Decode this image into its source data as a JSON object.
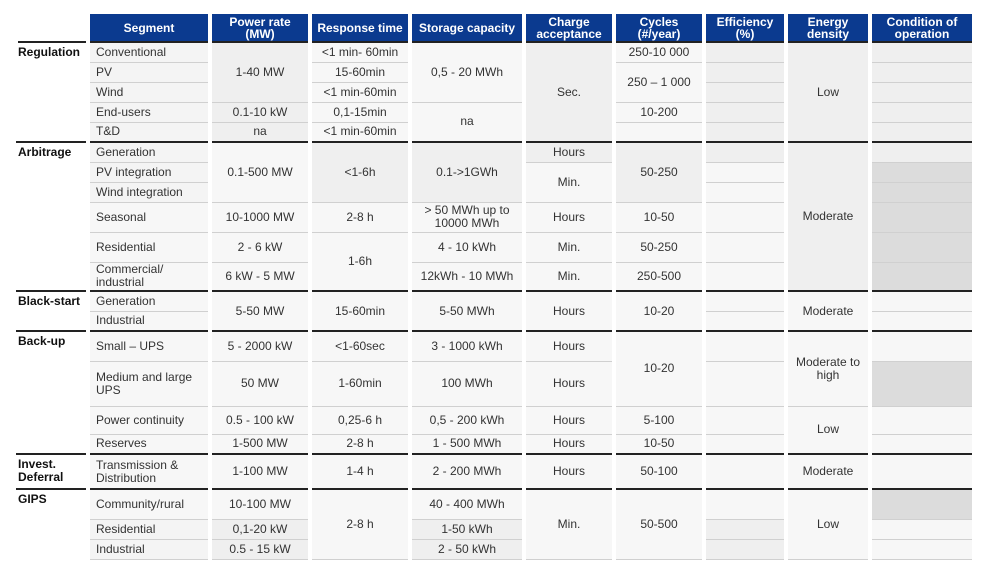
{
  "header": {
    "segment": "Segment",
    "power": "Power rate (MW)",
    "response": "Response time",
    "storage": "Storage capacity",
    "charge": "Charge acceptance",
    "cycles": "Cycles (#/year)",
    "efficiency": "Efficiency (%)",
    "energy": "Energy density",
    "condition": "Condition of operation"
  },
  "colors": {
    "header_bg": "#0b3a8f",
    "header_text": "#ffffff"
  },
  "groups": [
    {
      "name": "Regulation",
      "segments": [
        "Conventional",
        "PV",
        "Wind",
        "End-users",
        "T&D"
      ],
      "power": [
        "1-40 MW",
        "0.1-10 kW",
        "na"
      ],
      "response": [
        "<1 min- 60min",
        "15-60min",
        "<1 min-60min",
        "0,1-15min",
        "<1 min-60min"
      ],
      "storage": [
        "0,5 - 20 MWh",
        "na"
      ],
      "charge": [
        "Sec."
      ],
      "cycles": [
        "250-10 000",
        "250 – 1 000",
        "10-200"
      ],
      "energy": [
        "Low"
      ]
    },
    {
      "name": "Arbitrage",
      "segments": [
        "Generation",
        "PV integration",
        "Wind integration",
        "Seasonal",
        "Residential",
        "Commercial/ industrial"
      ],
      "power": [
        "0.1-500 MW",
        "10-1000 MW",
        "2 - 6 kW",
        "6 kW - 5 MW"
      ],
      "response": [
        "<1-6h",
        "2-8 h",
        "1-6h"
      ],
      "storage": [
        "0.1->1GWh",
        "> 50 MWh up to 10000 MWh",
        "4 - 10 kWh",
        "12kWh - 10 MWh"
      ],
      "charge": [
        "Hours",
        "Min.",
        "Hours",
        "Min.",
        "Min."
      ],
      "cycles": [
        "50-250",
        "10-50",
        "50-250",
        "250-500"
      ],
      "energy": [
        "Moderate"
      ]
    },
    {
      "name": "Black-start",
      "segments": [
        "Generation",
        "Industrial"
      ],
      "power": [
        "5-50 MW"
      ],
      "response": [
        "15-60min"
      ],
      "storage": [
        "5-50 MWh"
      ],
      "charge": [
        "Hours"
      ],
      "cycles": [
        "10-20"
      ],
      "energy": [
        "Moderate"
      ]
    },
    {
      "name": "Back-up",
      "segments": [
        "Small – UPS",
        "Medium and large UPS",
        "Power continuity",
        "Reserves"
      ],
      "power": [
        "5 - 2000 kW",
        "50 MW",
        "0.5 - 100 kW",
        "1-500 MW"
      ],
      "response": [
        "<1-60sec",
        "1-60min",
        "0,25-6 h",
        "2-8 h"
      ],
      "storage": [
        "3 - 1000 kWh",
        "100 MWh",
        "0,5 - 200 kWh",
        "1 - 500 MWh"
      ],
      "charge": [
        "Hours",
        "Hours",
        "Hours",
        "Hours"
      ],
      "cycles": [
        "10-20",
        "5-100",
        "10-50"
      ],
      "energy": [
        "Moderate to high",
        "Low"
      ]
    },
    {
      "name": "Invest. Deferral",
      "segments": [
        "Transmission & Distribution"
      ],
      "power": [
        "1-100 MW"
      ],
      "response": [
        "1-4 h"
      ],
      "storage": [
        "2 - 200 MWh"
      ],
      "charge": [
        "Hours"
      ],
      "cycles": [
        "50-100"
      ],
      "energy": [
        "Moderate"
      ]
    },
    {
      "name": "GIPS",
      "segments": [
        "Community/rural",
        "Residential",
        "Industrial"
      ],
      "power": [
        "10-100 MW",
        "0,1-20 kW",
        "0.5 - 15 kW"
      ],
      "response": [
        "2-8 h"
      ],
      "storage": [
        "40 - 400 MWh",
        "1-50 kWh",
        "2 - 50 kWh"
      ],
      "charge": [
        "Min."
      ],
      "cycles": [
        "50-500"
      ],
      "energy": [
        "Low"
      ]
    }
  ]
}
